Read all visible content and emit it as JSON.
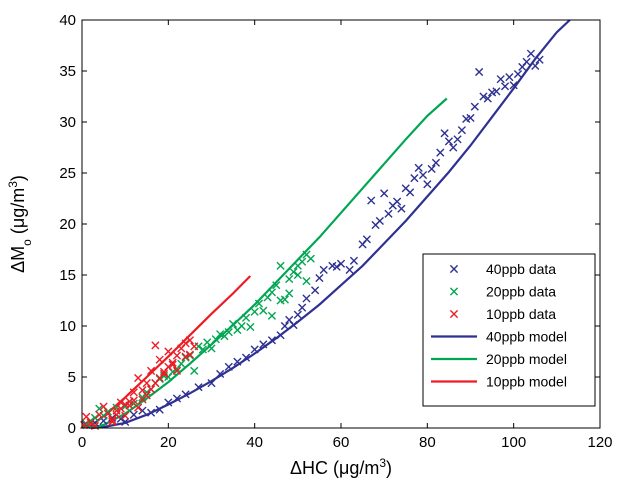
{
  "chart_data": {
    "type": "scatter",
    "xlabel": "ΔHC (μg/m3)",
    "ylabel": "ΔMo (μg/m3)",
    "xlim": [
      0,
      120
    ],
    "ylim": [
      0,
      40
    ],
    "xticks": [
      "0",
      "20",
      "40",
      "60",
      "80",
      "100",
      "120"
    ],
    "yticks": [
      "0",
      "5",
      "10",
      "15",
      "20",
      "25",
      "30",
      "35",
      "40"
    ],
    "grid": false,
    "legend_position": "lower-right",
    "series": [
      {
        "name": "40ppb data",
        "kind": "scatter",
        "color": "#2e3192",
        "points": [
          [
            1,
            0.3
          ],
          [
            3,
            0.5
          ],
          [
            5,
            0.7
          ],
          [
            7,
            1.0
          ],
          [
            9,
            0.9
          ],
          [
            10,
            0.6
          ],
          [
            12,
            1.3
          ],
          [
            14,
            1.7
          ],
          [
            16,
            1.5
          ],
          [
            18,
            1.8
          ],
          [
            20,
            2.5
          ],
          [
            22,
            2.9
          ],
          [
            24,
            3.3
          ],
          [
            27,
            4.0
          ],
          [
            30,
            4.4
          ],
          [
            32,
            5.3
          ],
          [
            34,
            6.0
          ],
          [
            36,
            6.5
          ],
          [
            38,
            6.9
          ],
          [
            40,
            7.7
          ],
          [
            42,
            8.2
          ],
          [
            44,
            8.6
          ],
          [
            46,
            9.1
          ],
          [
            47,
            10.0
          ],
          [
            48,
            10.6
          ],
          [
            49,
            10.1
          ],
          [
            50,
            11.1
          ],
          [
            51,
            11.8
          ],
          [
            52,
            12.7
          ],
          [
            54,
            13.5
          ],
          [
            55,
            14.7
          ],
          [
            56,
            15.5
          ],
          [
            58,
            15.9
          ],
          [
            59,
            15.8
          ],
          [
            60,
            16.1
          ],
          [
            62,
            15.5
          ],
          [
            63,
            16.4
          ],
          [
            65,
            18.0
          ],
          [
            66,
            18.5
          ],
          [
            67,
            22.3
          ],
          [
            68,
            19.9
          ],
          [
            69,
            20.3
          ],
          [
            70,
            23.0
          ],
          [
            71,
            21.0
          ],
          [
            72,
            21.8
          ],
          [
            73,
            22.2
          ],
          [
            74,
            21.5
          ],
          [
            75,
            23.5
          ],
          [
            76,
            23.1
          ],
          [
            77,
            24.5
          ],
          [
            78,
            25.5
          ],
          [
            79,
            24.8
          ],
          [
            80,
            23.9
          ],
          [
            81,
            25.4
          ],
          [
            82,
            26.0
          ],
          [
            83,
            27.0
          ],
          [
            84,
            28.9
          ],
          [
            85,
            28.1
          ],
          [
            86,
            27.5
          ],
          [
            87,
            28.3
          ],
          [
            88,
            29.2
          ],
          [
            89,
            30.3
          ],
          [
            90,
            30.4
          ],
          [
            91,
            31.5
          ],
          [
            92,
            34.9
          ],
          [
            93,
            32.5
          ],
          [
            94,
            32.3
          ],
          [
            95,
            32.9
          ],
          [
            96,
            33.0
          ],
          [
            97,
            34.2
          ],
          [
            98,
            33.5
          ],
          [
            99,
            34.4
          ],
          [
            100,
            33.6
          ],
          [
            101,
            34.7
          ],
          [
            102,
            35.4
          ],
          [
            103,
            35.9
          ],
          [
            104,
            36.7
          ],
          [
            105,
            35.5
          ],
          [
            106,
            36.1
          ]
        ]
      },
      {
        "name": "20ppb data",
        "kind": "scatter",
        "color": "#00a651",
        "points": [
          [
            1,
            0.4
          ],
          [
            2,
            0.7
          ],
          [
            3,
            1.0
          ],
          [
            4,
            1.9
          ],
          [
            5,
            1.2
          ],
          [
            6,
            1.6
          ],
          [
            8,
            2.0
          ],
          [
            10,
            2.1
          ],
          [
            12,
            2.4
          ],
          [
            14,
            3.0
          ],
          [
            15,
            3.5
          ],
          [
            16,
            3.8
          ],
          [
            17,
            4.4
          ],
          [
            18,
            4.8
          ],
          [
            19,
            5.1
          ],
          [
            20,
            5.0
          ],
          [
            21,
            5.5
          ],
          [
            22,
            5.8
          ],
          [
            23,
            6.3
          ],
          [
            24,
            6.9
          ],
          [
            25,
            7.1
          ],
          [
            26,
            5.6
          ],
          [
            27,
            8.0
          ],
          [
            28,
            7.7
          ],
          [
            29,
            8.4
          ],
          [
            30,
            7.8
          ],
          [
            31,
            8.7
          ],
          [
            32,
            9.2
          ],
          [
            33,
            9.0
          ],
          [
            34,
            9.4
          ],
          [
            35,
            10.2
          ],
          [
            36,
            9.6
          ],
          [
            37,
            10.0
          ],
          [
            38,
            10.8
          ],
          [
            39,
            9.9
          ],
          [
            40,
            11.4
          ],
          [
            41,
            12.2
          ],
          [
            42,
            11.5
          ],
          [
            43,
            12.8
          ],
          [
            44,
            13.3
          ],
          [
            45,
            14.0
          ],
          [
            46,
            15.9
          ],
          [
            47,
            12.6
          ],
          [
            48,
            14.6
          ],
          [
            49,
            15.3
          ],
          [
            50,
            15.9
          ],
          [
            51,
            16.3
          ],
          [
            52,
            17.0
          ],
          [
            53,
            16.6
          ],
          [
            44,
            11.0
          ],
          [
            46,
            12.5
          ],
          [
            48,
            13.2
          ],
          [
            50,
            15.0
          ],
          [
            52,
            14.4
          ]
        ]
      },
      {
        "name": "10ppb data",
        "kind": "scatter",
        "color": "#ed1c24",
        "points": [
          [
            0.5,
            0.3
          ],
          [
            1,
            1.1
          ],
          [
            2,
            0.5
          ],
          [
            3,
            0.2
          ],
          [
            4,
            1.3
          ],
          [
            5,
            2.1
          ],
          [
            6,
            1.4
          ],
          [
            7,
            0.8
          ],
          [
            8,
            1.7
          ],
          [
            9,
            2.5
          ],
          [
            10,
            1.2
          ],
          [
            11,
            2.2
          ],
          [
            12,
            2.7
          ],
          [
            13,
            2.0
          ],
          [
            14,
            2.8
          ],
          [
            15,
            3.2
          ],
          [
            16,
            3.8
          ],
          [
            17,
            4.4
          ],
          [
            18,
            4.9
          ],
          [
            19,
            5.5
          ],
          [
            20,
            6.0
          ],
          [
            21,
            6.4
          ],
          [
            22,
            7.1
          ],
          [
            23,
            7.8
          ],
          [
            24,
            8.3
          ],
          [
            25,
            8.6
          ],
          [
            26,
            8.0
          ],
          [
            17,
            8.1
          ],
          [
            18,
            6.7
          ],
          [
            19,
            5.3
          ],
          [
            20,
            7.5
          ],
          [
            21,
            6.2
          ],
          [
            22,
            5.6
          ],
          [
            16,
            5.6
          ],
          [
            15,
            4.4
          ],
          [
            14,
            3.7
          ],
          [
            13,
            4.9
          ],
          [
            12,
            3.5
          ],
          [
            11,
            2.6
          ],
          [
            10,
            2.3
          ],
          [
            9,
            1.9
          ],
          [
            8,
            1.3
          ],
          [
            7,
            0.6
          ],
          [
            24,
            7.0
          ],
          [
            25,
            7.2
          ]
        ]
      },
      {
        "name": "40ppb model",
        "kind": "line",
        "color": "#2e3192",
        "points": [
          [
            2,
            0.0
          ],
          [
            5,
            0.1
          ],
          [
            10,
            0.5
          ],
          [
            15,
            1.3
          ],
          [
            20,
            2.3
          ],
          [
            25,
            3.4
          ],
          [
            30,
            4.6
          ],
          [
            35,
            5.9
          ],
          [
            40,
            7.3
          ],
          [
            45,
            8.8
          ],
          [
            50,
            10.4
          ],
          [
            55,
            12.1
          ],
          [
            60,
            14.0
          ],
          [
            65,
            15.9
          ],
          [
            70,
            18.1
          ],
          [
            75,
            20.3
          ],
          [
            80,
            22.7
          ],
          [
            85,
            25.1
          ],
          [
            90,
            27.7
          ],
          [
            95,
            30.5
          ],
          [
            100,
            33.3
          ],
          [
            105,
            36.2
          ],
          [
            110,
            38.8
          ],
          [
            113,
            40.0
          ]
        ]
      },
      {
        "name": "20ppb model",
        "kind": "line",
        "color": "#00a651",
        "points": [
          [
            2,
            0.0
          ],
          [
            5,
            0.3
          ],
          [
            10,
            1.4
          ],
          [
            15,
            2.9
          ],
          [
            20,
            4.5
          ],
          [
            25,
            6.3
          ],
          [
            30,
            8.2
          ],
          [
            35,
            10.1
          ],
          [
            40,
            12.1
          ],
          [
            45,
            14.3
          ],
          [
            50,
            16.5
          ],
          [
            55,
            18.7
          ],
          [
            60,
            21.1
          ],
          [
            65,
            23.5
          ],
          [
            70,
            25.9
          ],
          [
            75,
            28.3
          ],
          [
            80,
            30.6
          ],
          [
            84.5,
            32.3
          ]
        ]
      },
      {
        "name": "10ppb model",
        "kind": "line",
        "color": "#ed1c24",
        "points": [
          [
            1,
            0.0
          ],
          [
            3,
            0.5
          ],
          [
            6,
            1.5
          ],
          [
            10,
            3.0
          ],
          [
            15,
            5.0
          ],
          [
            20,
            7.0
          ],
          [
            25,
            9.1
          ],
          [
            30,
            11.2
          ],
          [
            35,
            13.2
          ],
          [
            39,
            14.9
          ]
        ]
      }
    ]
  }
}
